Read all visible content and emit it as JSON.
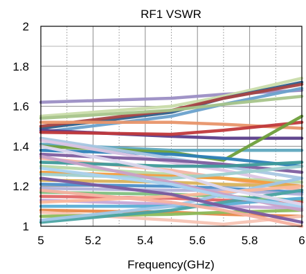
{
  "chart_data": {
    "type": "line",
    "title": "RF1 VSWR",
    "xlabel": "Frequency(GHz)",
    "ylabel": "",
    "xlim": [
      5,
      6
    ],
    "ylim": [
      1,
      2
    ],
    "x_ticks": [
      5,
      5.2,
      5.4,
      5.6,
      5.8,
      6
    ],
    "x_tick_labels": [
      "5",
      "5.2",
      "5.4",
      "5.6",
      "5.8",
      "6"
    ],
    "y_ticks": [
      1,
      1.2,
      1.4,
      1.6,
      1.8,
      2
    ],
    "y_tick_labels": [
      "1",
      "1.2",
      "1.4",
      "1.6",
      "1.8",
      "2"
    ],
    "grid": {
      "major": "solid",
      "minor_x": "dotted",
      "minor_y_ticks": [
        1.9
      ]
    },
    "legend": "none",
    "x": [
      5,
      5.5,
      5.7,
      6
    ],
    "series": [
      {
        "color": "#9b8ec4",
        "values": [
          1.62,
          1.64,
          1.66,
          1.68
        ]
      },
      {
        "color": "#c9dcaa",
        "values": [
          1.55,
          1.6,
          1.65,
          1.74
        ]
      },
      {
        "color": "#2e5f8a",
        "values": [
          1.49,
          1.57,
          1.64,
          1.72
        ]
      },
      {
        "color": "#a84545",
        "values": [
          1.5,
          1.58,
          1.64,
          1.71
        ]
      },
      {
        "color": "#6aa1cc",
        "values": [
          1.47,
          1.55,
          1.61,
          1.69
        ]
      },
      {
        "color": "#a6c48a",
        "values": [
          1.54,
          1.58,
          1.61,
          1.65
        ]
      },
      {
        "color": "#e8956a",
        "values": [
          1.52,
          1.52,
          1.51,
          1.49
        ]
      },
      {
        "color": "#5b3e8a",
        "values": [
          1.48,
          1.45,
          1.44,
          1.44
        ]
      },
      {
        "color": "#c0393b",
        "values": [
          1.47,
          1.46,
          1.48,
          1.52
        ]
      },
      {
        "color": "#5fa8bf",
        "values": [
          1.41,
          1.38,
          1.38,
          1.38
        ]
      },
      {
        "color": "#6e9f3b",
        "values": [
          1.4,
          1.37,
          1.33,
          1.55
        ]
      },
      {
        "color": "#2c7fb8",
        "values": [
          1.38,
          1.36,
          1.34,
          1.3
        ]
      },
      {
        "color": "#a9c7e3",
        "values": [
          1.44,
          1.34,
          1.3,
          1.24
        ]
      },
      {
        "color": "#dcc5e4",
        "values": [
          1.43,
          1.32,
          1.28,
          1.2
        ]
      },
      {
        "color": "#7e5e9f",
        "values": [
          1.36,
          1.33,
          1.31,
          1.27
        ]
      },
      {
        "color": "#f2b5a5",
        "values": [
          1.34,
          1.28,
          1.24,
          1.18
        ]
      },
      {
        "color": "#3e9a9a",
        "values": [
          1.32,
          1.3,
          1.3,
          1.32
        ]
      },
      {
        "color": "#b9d7a4",
        "values": [
          1.3,
          1.26,
          1.24,
          1.22
        ]
      },
      {
        "color": "#f39c3d",
        "values": [
          1.27,
          1.25,
          1.24,
          1.2
        ]
      },
      {
        "color": "#9fd0cf",
        "values": [
          1.26,
          1.24,
          1.26,
          1.3
        ]
      },
      {
        "color": "#d9b25b",
        "values": [
          1.23,
          1.22,
          1.21,
          1.2
        ]
      },
      {
        "color": "#4d8fc9",
        "values": [
          1.21,
          1.2,
          1.19,
          1.17
        ]
      },
      {
        "color": "#b0b0d8",
        "values": [
          1.19,
          1.18,
          1.18,
          1.16
        ]
      },
      {
        "color": "#7fbf7f",
        "values": [
          1.17,
          1.16,
          1.15,
          1.13
        ]
      },
      {
        "color": "#e06666",
        "values": [
          1.15,
          1.14,
          1.13,
          1.12
        ]
      },
      {
        "color": "#c6a7d6",
        "values": [
          1.13,
          1.11,
          1.1,
          1.09
        ]
      },
      {
        "color": "#5aaed5",
        "values": [
          1.1,
          1.1,
          1.11,
          1.14
        ]
      },
      {
        "color": "#e8884a",
        "values": [
          1.08,
          1.07,
          1.06,
          1.05
        ]
      },
      {
        "color": "#f7c4b4",
        "values": [
          1.07,
          1.03,
          1.01,
          1.05
        ]
      },
      {
        "color": "#8cbc5c",
        "values": [
          1.05,
          1.06,
          1.07,
          1.08
        ]
      },
      {
        "color": "#4aa3a2",
        "values": [
          1.02,
          1.08,
          1.12,
          1.18
        ]
      },
      {
        "color": "#9fc6e7",
        "values": [
          1.03,
          1.1,
          1.16,
          1.24
        ]
      },
      {
        "color": "#fbb79b",
        "values": [
          1.12,
          1.15,
          1.17,
          1.2
        ]
      },
      {
        "color": "#7a5aa0",
        "values": [
          1.24,
          1.16,
          1.1,
          1.02
        ]
      },
      {
        "color": "#f6b1a0",
        "values": [
          1.18,
          1.12,
          1.08,
          1.0
        ]
      },
      {
        "color": "#c7a1c9",
        "values": [
          1.35,
          1.22,
          1.16,
          1.08
        ]
      },
      {
        "color": "#a9d2f0",
        "values": [
          1.29,
          1.21,
          1.15,
          1.1
        ]
      },
      {
        "color": "#ddd7ee",
        "values": [
          1.4,
          1.27,
          1.19,
          1.11
        ]
      }
    ]
  }
}
